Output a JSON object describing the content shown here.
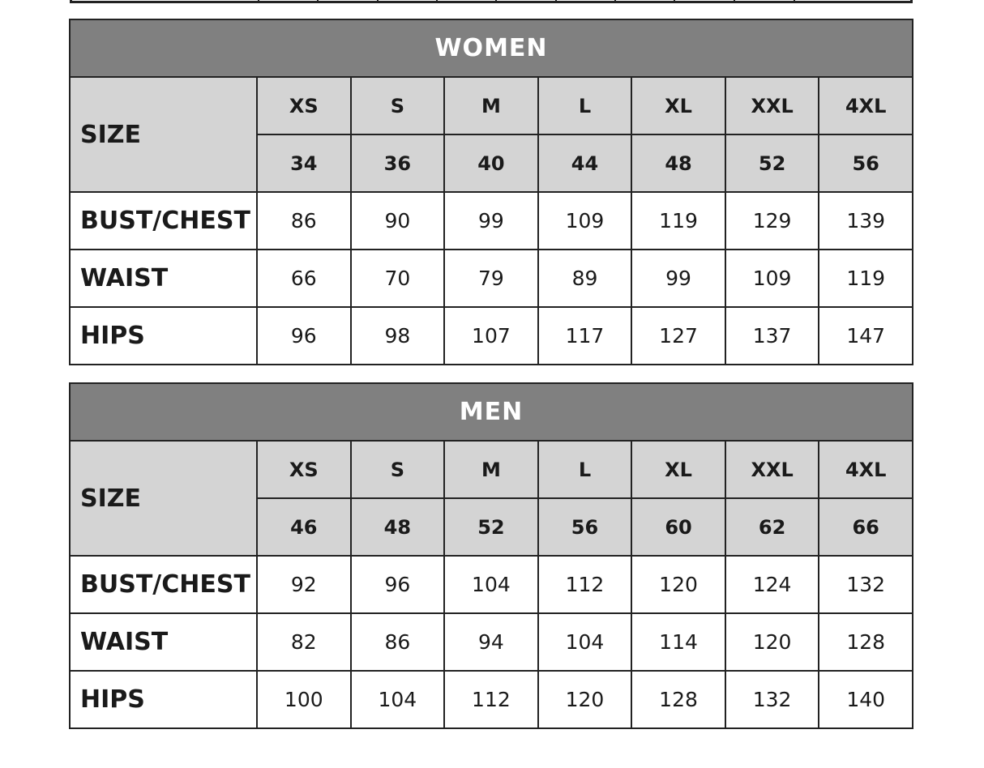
{
  "colors": {
    "title_bg": "#808080",
    "header_bg": "#d4d4d4",
    "border": "#222222"
  },
  "tables": [
    {
      "title": "WOMEN",
      "size_label": "SIZE",
      "sizes": [
        "XS",
        "S",
        "M",
        "L",
        "XL",
        "XXL",
        "4XL"
      ],
      "eu_sizes": [
        "34",
        "36",
        "40",
        "44",
        "48",
        "52",
        "56"
      ],
      "rows": [
        {
          "label": "BUST/CHEST",
          "values": [
            "86",
            "90",
            "99",
            "109",
            "119",
            "129",
            "139"
          ]
        },
        {
          "label": "WAIST",
          "values": [
            "66",
            "70",
            "79",
            "89",
            "99",
            "109",
            "119"
          ]
        },
        {
          "label": "HIPS",
          "values": [
            "96",
            "98",
            "107",
            "117",
            "127",
            "137",
            "147"
          ]
        }
      ]
    },
    {
      "title": "MEN",
      "size_label": "SIZE",
      "sizes": [
        "XS",
        "S",
        "M",
        "L",
        "XL",
        "XXL",
        "4XL"
      ],
      "eu_sizes": [
        "46",
        "48",
        "52",
        "56",
        "60",
        "62",
        "66"
      ],
      "rows": [
        {
          "label": "BUST/CHEST",
          "values": [
            "92",
            "96",
            "104",
            "112",
            "120",
            "124",
            "132"
          ]
        },
        {
          "label": "WAIST",
          "values": [
            "82",
            "86",
            "94",
            "104",
            "114",
            "120",
            "128"
          ]
        },
        {
          "label": "HIPS",
          "values": [
            "100",
            "104",
            "112",
            "120",
            "128",
            "132",
            "140"
          ]
        }
      ]
    }
  ]
}
